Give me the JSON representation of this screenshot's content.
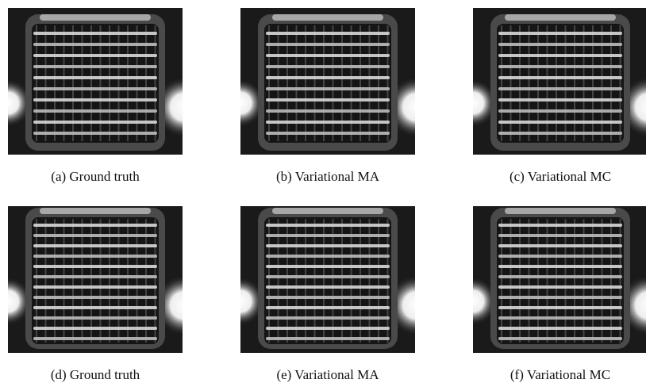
{
  "panels": [
    {
      "caption": "(a) Ground truth"
    },
    {
      "caption": "(b) Variational MA"
    },
    {
      "caption": "(c) Variational MC"
    },
    {
      "caption": "(d) Ground truth"
    },
    {
      "caption": "(e) Variational MA"
    },
    {
      "caption": "(f) Variational MC"
    }
  ]
}
